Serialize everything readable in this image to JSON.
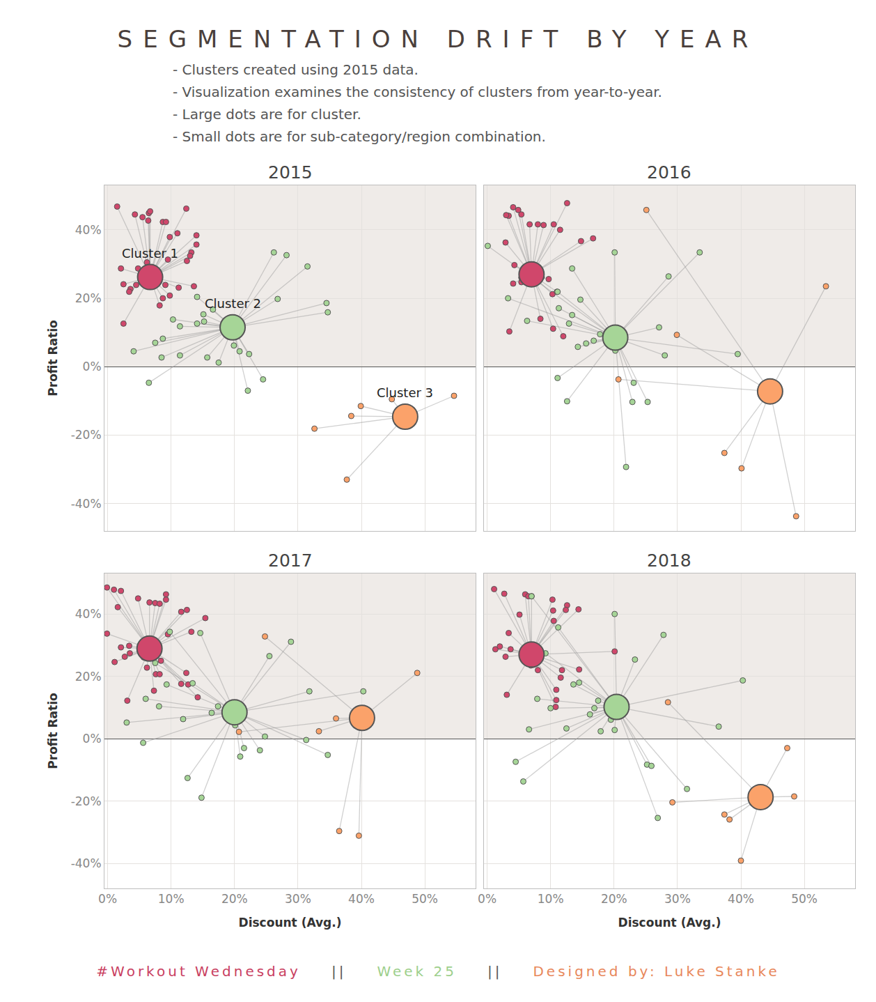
{
  "title": "SEGMENTATION DRIFT BY YEAR",
  "subtitle": [
    "- Clusters created using 2015 data.",
    "- Visualization examines the consistency of clusters from year-to-year.",
    "- Large dots are for cluster.",
    "- Small dots are for sub-category/region combination."
  ],
  "footer": [
    {
      "text": "#Workout Wednesday",
      "color": "#c9405f"
    },
    {
      "text": "||",
      "color": "#555555"
    },
    {
      "text": "Week 25",
      "color": "#9dcf8c"
    },
    {
      "text": "||",
      "color": "#555555"
    },
    {
      "text": "Designed by: Luke Stanke",
      "color": "#e8875a"
    }
  ],
  "x_label": "Discount (Avg.)",
  "y_label": "Profit Ratio",
  "chart_data": [
    {
      "type": "scatter",
      "title": "2015",
      "tick_labels": "y",
      "grid": true,
      "xlim": [
        -0.5,
        58
      ],
      "ylim": [
        -48,
        53
      ],
      "xticks": [
        {
          "value": 0,
          "label": "0%"
        },
        {
          "value": 10,
          "label": "10%"
        },
        {
          "value": 20,
          "label": "20%"
        },
        {
          "value": 30,
          "label": "30%"
        },
        {
          "value": 40,
          "label": "40%"
        },
        {
          "value": 50,
          "label": "50%"
        }
      ],
      "yticks": [
        {
          "value": -40,
          "label": "-40%"
        },
        {
          "value": -20,
          "label": "-20%"
        },
        {
          "value": 0,
          "label": "0%"
        },
        {
          "value": 20,
          "label": "20%"
        },
        {
          "value": 40,
          "label": "40%"
        }
      ],
      "series": [
        {
          "label": "Cluster 1",
          "color": "#d0476b",
          "center": {
            "x": 6.7,
            "y": 26.2
          },
          "x": [
            1.5,
            4.3,
            5.5,
            6.5,
            6.7,
            6.4,
            8.7,
            9.2,
            12.4,
            11.0,
            9.8,
            14.0,
            14.0,
            13.2,
            13.0,
            12.5,
            9.5,
            6.2,
            2.1,
            4.8,
            7.9,
            6.8,
            4.5,
            3.6,
            3.4,
            2.5,
            9.1,
            11.2,
            13.6,
            9.8,
            8.7,
            8.2,
            2.5
          ],
          "y": [
            46.8,
            44.5,
            43.7,
            44.9,
            45.4,
            42.7,
            42.3,
            42.3,
            46.2,
            39.0,
            37.9,
            38.4,
            35.7,
            33.4,
            32.4,
            30.9,
            31.3,
            30.5,
            28.7,
            28.7,
            25.8,
            24.5,
            23.9,
            22.7,
            21.9,
            24.1,
            23.9,
            23.1,
            23.5,
            20.8,
            20.0,
            17.9,
            12.6
          ]
        },
        {
          "label": "Cluster 2",
          "color": "#a6d597",
          "center": {
            "x": 19.7,
            "y": 11.5
          },
          "x": [
            26.2,
            28.2,
            31.5,
            26.8,
            34.5,
            34.7,
            14.1,
            16.6,
            15.1,
            15.2,
            14.1,
            11.4,
            10.3,
            7.5,
            8.7,
            4.1,
            8.5,
            11.4,
            15.7,
            17.5,
            19.9,
            19.9,
            20.8,
            22.3,
            24.5,
            22.1,
            6.5
          ],
          "y": [
            33.4,
            32.6,
            29.3,
            19.8,
            18.6,
            15.9,
            20.4,
            16.7,
            15.3,
            13.2,
            12.6,
            11.8,
            13.8,
            7.0,
            8.2,
            4.5,
            2.7,
            3.3,
            2.7,
            1.2,
            9.7,
            6.2,
            4.5,
            3.7,
            -3.7,
            -7.0,
            -4.7
          ]
        },
        {
          "label": "Cluster 3",
          "color": "#fba26a",
          "center": {
            "x": 46.9,
            "y": -14.6
          },
          "x": [
            44.8,
            39.9,
            38.4,
            46.3,
            54.6,
            32.6,
            37.7
          ],
          "y": [
            -9.5,
            -11.5,
            -14.4,
            -13.6,
            -8.5,
            -18.1,
            -33.0
          ]
        }
      ]
    },
    {
      "type": "scatter",
      "title": "2016",
      "tick_labels": false,
      "grid": true,
      "xlim": [
        -0.5,
        58
      ],
      "ylim": [
        -48,
        53
      ],
      "xticks": [
        {
          "value": 0,
          "label": "0%"
        },
        {
          "value": 10,
          "label": "10%"
        },
        {
          "value": 20,
          "label": "20%"
        },
        {
          "value": 30,
          "label": "30%"
        },
        {
          "value": 40,
          "label": "40%"
        },
        {
          "value": 50,
          "label": "50%"
        }
      ],
      "yticks": [
        {
          "value": -40,
          "label": "-40%"
        },
        {
          "value": -20,
          "label": "-20%"
        },
        {
          "value": 0,
          "label": "0%"
        },
        {
          "value": 20,
          "label": "20%"
        },
        {
          "value": 40,
          "label": "40%"
        }
      ],
      "series": [
        {
          "color": "#d0476b",
          "center": {
            "x": 7.0,
            "y": 27.0
          },
          "x": [
            12.6,
            4.1,
            4.9,
            3.4,
            3.0,
            5.4,
            6.7,
            8.0,
            8.9,
            10.5,
            11.5,
            16.7,
            14.8,
            2.9,
            4.3,
            5.6,
            5.4,
            6.5,
            4.1,
            5.4,
            6.7,
            7.6,
            8.6,
            9.7,
            10.3,
            11.0,
            8.4,
            10.4,
            12.0,
            3.5
          ],
          "y": [
            47.8,
            46.6,
            45.8,
            44.1,
            44.3,
            44.5,
            41.6,
            41.6,
            41.4,
            41.6,
            40.0,
            37.5,
            36.7,
            36.3,
            29.7,
            27.2,
            26.0,
            28.7,
            24.3,
            24.7,
            24.3,
            24.7,
            26.2,
            25.6,
            21.2,
            21.9,
            14.0,
            11.1,
            8.9,
            10.3
          ]
        },
        {
          "color": "#a6d597",
          "center": {
            "x": 20.2,
            "y": 8.5
          },
          "x": [
            0.1,
            20.1,
            33.5,
            13.4,
            28.6,
            11.1,
            14.7,
            3.3,
            11.3,
            13.4,
            6.3,
            12.9,
            27.1,
            17.8,
            16.8,
            15.6,
            14.3,
            20.1,
            20.2,
            28.0,
            39.5,
            11.1,
            23.1,
            12.6,
            22.9,
            25.3,
            21.9
          ],
          "y": [
            35.3,
            33.4,
            33.4,
            28.7,
            26.4,
            21.9,
            19.6,
            20.0,
            17.1,
            15.1,
            13.4,
            12.6,
            11.5,
            9.5,
            7.6,
            6.8,
            5.8,
            11.1,
            4.7,
            3.3,
            3.7,
            -3.3,
            -4.7,
            -10.1,
            -10.3,
            -10.3,
            -29.3
          ]
        },
        {
          "color": "#fba26a",
          "center": {
            "x": 44.6,
            "y": -7.2
          },
          "x": [
            25.1,
            53.4,
            29.9,
            20.7,
            37.4,
            40.1,
            48.7
          ],
          "y": [
            45.8,
            23.5,
            9.3,
            -3.7,
            -25.2,
            -29.7,
            -43.7
          ]
        }
      ]
    },
    {
      "type": "scatter",
      "title": "2017",
      "tick_labels": true,
      "grid": true,
      "xlim": [
        -0.5,
        58
      ],
      "ylim": [
        -48,
        53
      ],
      "xticks": [
        {
          "value": 0,
          "label": "0%"
        },
        {
          "value": 10,
          "label": "10%"
        },
        {
          "value": 20,
          "label": "20%"
        },
        {
          "value": 30,
          "label": "30%"
        },
        {
          "value": 40,
          "label": "40%"
        },
        {
          "value": 50,
          "label": "50%"
        }
      ],
      "yticks": [
        {
          "value": -40,
          "label": "-40%"
        },
        {
          "value": -20,
          "label": "-20%"
        },
        {
          "value": 0,
          "label": "0%"
        },
        {
          "value": 20,
          "label": "20%"
        },
        {
          "value": 40,
          "label": "40%"
        }
      ],
      "series": [
        {
          "color": "#d0476b",
          "center": {
            "x": 6.6,
            "y": 28.9
          },
          "x": [
            -0.1,
            1.0,
            2.1,
            4.8,
            9.2,
            9.2,
            6.6,
            7.5,
            8.2,
            1.6,
            12.5,
            11.6,
            15.4,
            13.2,
            -0.1,
            9.5,
            2.1,
            3.4,
            3.5,
            2.7,
            1.1,
            5.7,
            8.4,
            6.2,
            7.6,
            8.2,
            12.4,
            11.6,
            12.7,
            7.3,
            14.2,
            3.1
          ],
          "y": [
            48.5,
            47.8,
            47.4,
            45.0,
            46.3,
            44.6,
            43.7,
            43.5,
            43.3,
            42.2,
            41.3,
            40.7,
            38.7,
            34.3,
            33.7,
            33.5,
            29.3,
            29.8,
            27.4,
            26.3,
            24.6,
            26.1,
            25.0,
            22.8,
            20.7,
            20.7,
            21.1,
            17.6,
            17.4,
            15.4,
            13.3,
            12.2
          ]
        },
        {
          "color": "#a6d597",
          "center": {
            "x": 20.0,
            "y": 8.5
          },
          "x": [
            9.8,
            14.6,
            28.9,
            25.5,
            7.5,
            9.3,
            13.4,
            31.8,
            40.3,
            6.0,
            8.1,
            17.4,
            16.4,
            19.9,
            20.0,
            20.1,
            3.0,
            11.9,
            24.8,
            31.3,
            5.6,
            21.5,
            24.0,
            34.7,
            20.9,
            12.6,
            14.8
          ],
          "y": [
            34.3,
            33.9,
            31.1,
            26.5,
            24.3,
            17.4,
            17.8,
            15.2,
            15.2,
            12.8,
            10.4,
            10.4,
            8.3,
            9.3,
            6.5,
            4.3,
            5.2,
            6.3,
            0.7,
            -0.4,
            -1.3,
            -3.0,
            -3.7,
            -5.2,
            -5.7,
            -12.6,
            -18.9
          ]
        },
        {
          "color": "#fba26a",
          "center": {
            "x": 40.1,
            "y": 6.7
          },
          "x": [
            24.8,
            48.8,
            36.0,
            33.3,
            20.7,
            36.5,
            39.6
          ],
          "y": [
            32.8,
            21.1,
            6.5,
            2.4,
            2.2,
            -29.6,
            -31.1
          ]
        }
      ]
    },
    {
      "type": "scatter",
      "title": "2018",
      "tick_labels": "x",
      "grid": true,
      "xlim": [
        -0.5,
        58
      ],
      "ylim": [
        -48,
        53
      ],
      "xticks": [
        {
          "value": 0,
          "label": "0%"
        },
        {
          "value": 10,
          "label": "10%"
        },
        {
          "value": 20,
          "label": "20%"
        },
        {
          "value": 30,
          "label": "30%"
        },
        {
          "value": 40,
          "label": "40%"
        },
        {
          "value": 50,
          "label": "50%"
        }
      ],
      "yticks": [
        {
          "value": -40,
          "label": "-40%"
        },
        {
          "value": -20,
          "label": "-20%"
        },
        {
          "value": 0,
          "label": "0%"
        },
        {
          "value": 20,
          "label": "20%"
        },
        {
          "value": 40,
          "label": "40%"
        }
      ],
      "series": [
        {
          "color": "#d0476b",
          "center": {
            "x": 7.0,
            "y": 27.0
          },
          "x": [
            1.1,
            2.7,
            6.0,
            6.5,
            7.0,
            10.3,
            12.6,
            12.4,
            14.4,
            10.4,
            5.1,
            10.5,
            3.4,
            1.3,
            2.0,
            3.7,
            2.9,
            7.3,
            11.8,
            14.5,
            20.1,
            11.6,
            8.0,
            10.9,
            10.9,
            10.8,
            3.1,
            6.9
          ],
          "y": [
            48.0,
            46.5,
            46.3,
            45.7,
            45.7,
            44.6,
            42.8,
            41.3,
            41.5,
            41.1,
            39.8,
            37.8,
            33.9,
            28.7,
            29.6,
            28.7,
            26.3,
            23.7,
            22.0,
            22.2,
            28.0,
            19.6,
            22.0,
            15.7,
            12.4,
            10.2,
            14.1,
            23.5
          ]
        },
        {
          "color": "#a6d597",
          "center": {
            "x": 20.4,
            "y": 10.2
          },
          "x": [
            7.0,
            20.1,
            27.8,
            11.2,
            9.2,
            23.3,
            40.3,
            14.5,
            13.6,
            7.9,
            17.5,
            16.9,
            16.2,
            20.1,
            19.5,
            10.0,
            12.5,
            6.6,
            17.9,
            20.1,
            36.5,
            4.5,
            5.7,
            25.2,
            25.9,
            31.5,
            26.9
          ],
          "y": [
            45.7,
            40.0,
            33.3,
            35.7,
            27.4,
            25.4,
            18.7,
            18.0,
            17.4,
            12.8,
            12.2,
            9.8,
            7.8,
            8.7,
            6.1,
            9.8,
            3.3,
            3.0,
            2.4,
            2.8,
            3.9,
            -7.4,
            -13.7,
            -8.3,
            -8.7,
            -16.1,
            -25.4
          ]
        },
        {
          "color": "#fba26a",
          "center": {
            "x": 43.1,
            "y": -18.7
          },
          "x": [
            28.5,
            47.3,
            48.4,
            29.2,
            37.4,
            38.2,
            40.0
          ],
          "y": [
            11.7,
            -3.0,
            -18.5,
            -20.4,
            -24.3,
            -25.9,
            -39.1
          ]
        }
      ]
    }
  ]
}
